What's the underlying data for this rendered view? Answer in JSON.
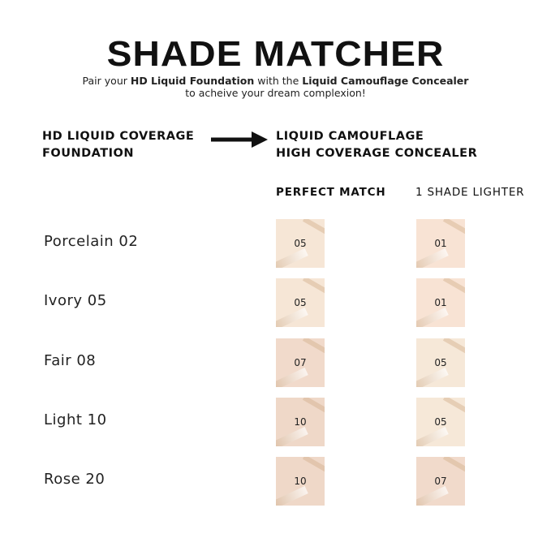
{
  "title": "SHADE MATCHER",
  "subtitle": {
    "pre": "Pair your ",
    "b1": "HD Liquid Foundation",
    "mid": " with the ",
    "b2": "Liquid Camouflage Concealer",
    "line2": "to acheive your dream complexion!"
  },
  "left_header": {
    "line1": "HD LIQUID COVERAGE",
    "line2": "FOUNDATION"
  },
  "right_header": {
    "line1": "LIQUID CAMOUFLAGE",
    "line2": "HIGH COVERAGE CONCEALER"
  },
  "columns": [
    "PERFECT MATCH",
    "1 SHADE LIGHTER"
  ],
  "rows": [
    {
      "foundation": "Porcelain 02",
      "match": "05",
      "lighter": "01",
      "match_color": "#f6e6d6",
      "lighter_color": "#f8e3d4"
    },
    {
      "foundation": "Ivory 05",
      "match": "05",
      "lighter": "01",
      "match_color": "#f6e6d6",
      "lighter_color": "#f8e3d4"
    },
    {
      "foundation": "Fair 08",
      "match": "07",
      "lighter": "05",
      "match_color": "#f1dacb",
      "lighter_color": "#f6e8d8"
    },
    {
      "foundation": "Light 10",
      "match": "10",
      "lighter": "05",
      "match_color": "#efd8c8",
      "lighter_color": "#f6e8d8"
    },
    {
      "foundation": "Rose 20",
      "match": "10",
      "lighter": "07",
      "match_color": "#efd8c8",
      "lighter_color": "#f1dacb"
    }
  ]
}
